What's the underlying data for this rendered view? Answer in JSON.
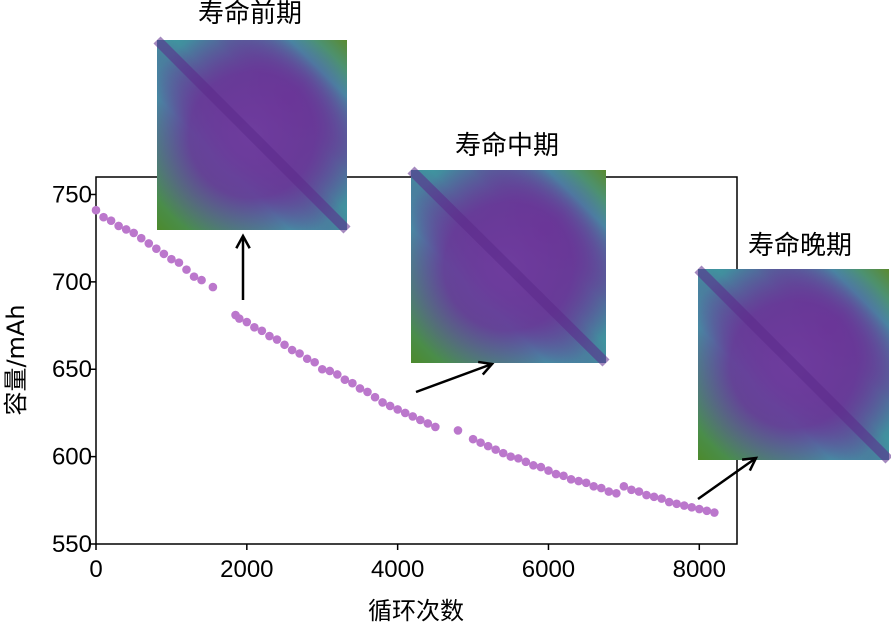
{
  "chart_data": {
    "type": "scatter",
    "xlabel": "循环次数",
    "ylabel": "容量/mAh",
    "xlim": [
      0,
      8500
    ],
    "ylim": [
      550,
      760
    ],
    "xticks": [
      "0",
      "2000",
      "4000",
      "6000",
      "8000"
    ],
    "yticks": [
      "550",
      "600",
      "650",
      "700",
      "750"
    ],
    "point_color": "#bb77cc",
    "grid": false,
    "series": [
      {
        "x": [
          0,
          100,
          200,
          300,
          400,
          500,
          600,
          700,
          800,
          900,
          1000,
          1100,
          1200,
          1300,
          1400,
          1550,
          1850,
          1900,
          2000,
          2100,
          2200,
          2300,
          2400,
          2500,
          2600,
          2700,
          2800,
          2900,
          3000,
          3100,
          3200,
          3300,
          3400,
          3500,
          3600,
          3700,
          3800,
          3900,
          4000,
          4100,
          4200,
          4300,
          4400,
          4500,
          4800,
          5000,
          5100,
          5200,
          5300,
          5400,
          5500,
          5600,
          5700,
          5800,
          5900,
          6000,
          6100,
          6200,
          6300,
          6400,
          6500,
          6600,
          6700,
          6800,
          6900,
          7000,
          7100,
          7200,
          7300,
          7400,
          7500,
          7600,
          7700,
          7800,
          7900,
          8000,
          8100,
          8200
        ],
        "y": [
          741,
          737,
          735,
          732,
          730,
          728,
          725,
          722,
          719,
          716,
          713,
          711,
          707,
          703,
          701,
          697,
          681,
          679,
          677,
          674,
          672,
          669,
          667,
          664,
          661,
          659,
          656,
          654,
          650,
          649,
          647,
          644,
          642,
          639,
          637,
          634,
          631,
          629,
          627,
          625,
          623,
          621,
          619,
          617,
          615,
          610,
          608,
          606,
          604,
          602,
          600,
          599,
          597,
          595,
          594,
          592,
          590,
          589,
          587,
          586,
          585,
          583,
          582,
          580,
          579,
          583,
          581,
          580,
          578,
          577,
          576,
          574,
          573,
          572,
          571,
          570,
          569,
          568
        ]
      }
    ],
    "insets": [
      {
        "title": "寿命前期",
        "pointer_x": 1950,
        "pointer_y": 683
      },
      {
        "title": "寿命中期",
        "pointer_x": 4200,
        "pointer_y": 632
      },
      {
        "title": "寿命晚期",
        "pointer_x": 8050,
        "pointer_y": 573
      }
    ]
  }
}
